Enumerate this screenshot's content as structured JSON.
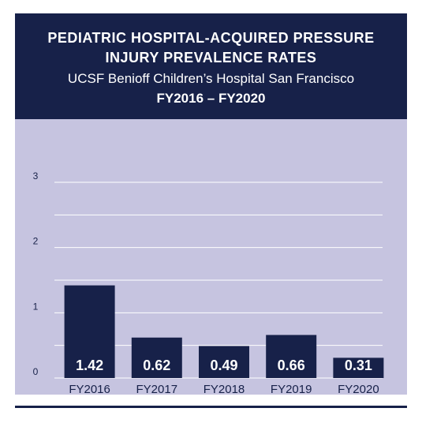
{
  "header": {
    "title_line1": "PEDIATRIC HOSPITAL-ACQUIRED PRESSURE",
    "title_line2": "INJURY PREVALENCE RATES",
    "subtitle": "UCSF Benioff Children’s Hospital San Francisco",
    "period": "FY2016 – FY2020"
  },
  "colors": {
    "header_bg": "#172149",
    "plot_bg": "#c6c4e0",
    "bar": "#172149",
    "grid": "#ffffff",
    "text": "#172149"
  },
  "chart_data": {
    "type": "bar",
    "title": "PEDIATRIC HOSPITAL-ACQUIRED PRESSURE INJURY PREVALENCE RATES",
    "subtitle": "UCSF Benioff Children’s Hospital San Francisco",
    "categories": [
      "FY2016",
      "FY2017",
      "FY2018",
      "FY2019",
      "FY2020"
    ],
    "values": [
      1.42,
      0.62,
      0.49,
      0.66,
      0.31
    ],
    "data_labels": [
      "1.42",
      "0.62",
      "0.49",
      "0.66",
      "0.31"
    ],
    "yticks": [
      "0",
      "1",
      "2",
      "3"
    ],
    "ylim": [
      0,
      3
    ],
    "xlabel": "",
    "ylabel": "",
    "grid": true,
    "legend": "none"
  }
}
